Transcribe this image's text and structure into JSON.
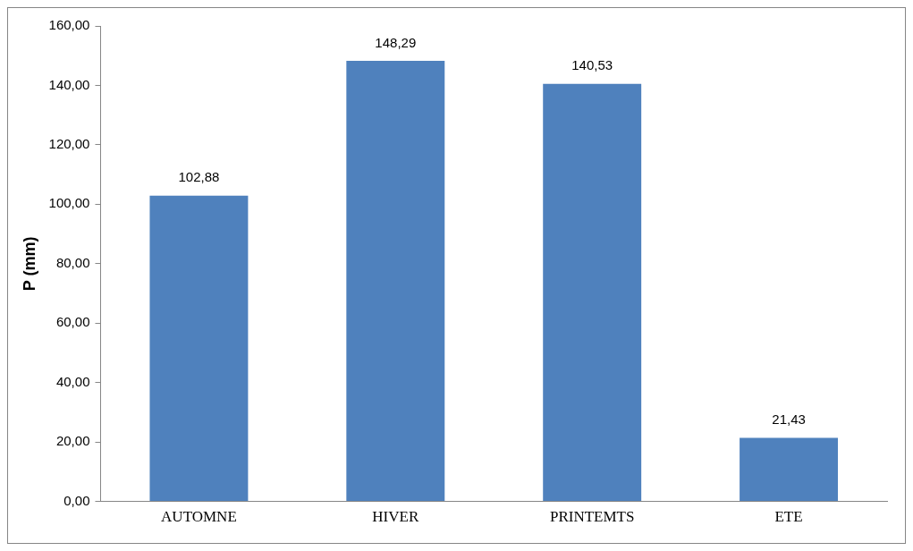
{
  "chart_data": {
    "type": "bar",
    "ylabel": "P (mm)",
    "categories": [
      "AUTOMNE",
      "HIVER",
      "PRINTEMTS",
      "ETE"
    ],
    "values": [
      102.88,
      148.29,
      140.53,
      21.43
    ],
    "value_labels": [
      "102,88",
      "148,29",
      "140,53",
      "21,43"
    ],
    "color": "#4f81bd",
    "ylim": [
      0,
      160
    ],
    "yticks": [
      {
        "value": 0,
        "label": "0,00"
      },
      {
        "value": 20,
        "label": "20,00"
      },
      {
        "value": 40,
        "label": "40,00"
      },
      {
        "value": 60,
        "label": "60,00"
      },
      {
        "value": 80,
        "label": "80,00"
      },
      {
        "value": 100,
        "label": "100,00"
      },
      {
        "value": 120,
        "label": "120,00"
      },
      {
        "value": 140,
        "label": "140,00"
      },
      {
        "value": 160,
        "label": "160,00"
      }
    ],
    "grid": false,
    "legend": false
  }
}
